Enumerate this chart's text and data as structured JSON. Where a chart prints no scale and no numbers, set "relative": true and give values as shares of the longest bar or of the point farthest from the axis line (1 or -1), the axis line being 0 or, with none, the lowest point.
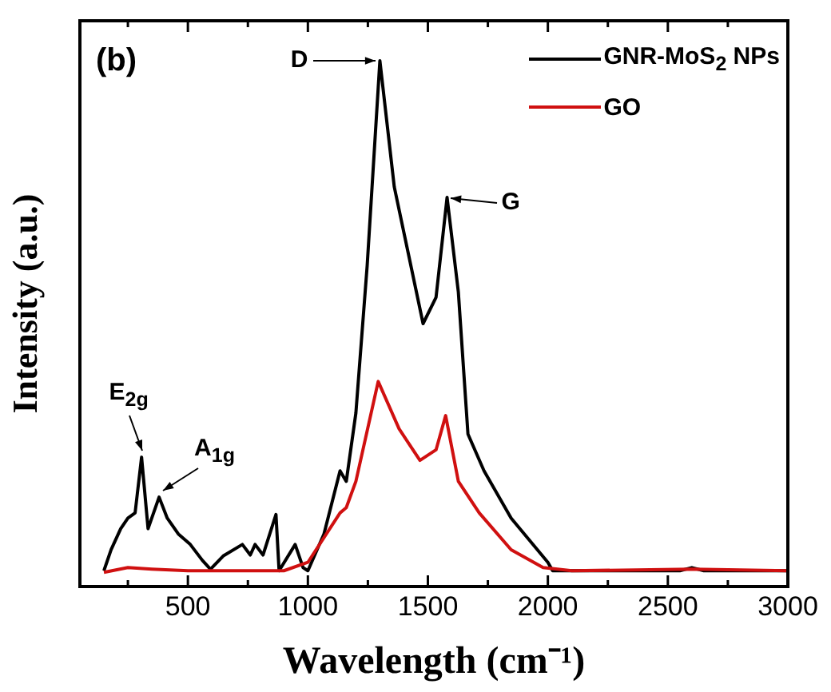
{
  "chart_data": {
    "type": "line",
    "relative": true,
    "xlabel": "Wavelength (cm⁻¹)",
    "ylabel": "Intensity (a.u.)",
    "xlim": [
      50,
      3000
    ],
    "xticks": [
      {
        "value": 250,
        "label": null
      },
      500,
      {
        "value": 750,
        "label": null
      },
      1000,
      {
        "value": 1250,
        "label": null
      },
      1500,
      {
        "value": 1750,
        "label": null
      },
      2000,
      {
        "value": 2250,
        "label": null
      },
      2500,
      {
        "value": 2750,
        "label": null
      },
      3000
    ],
    "legend": "top right",
    "grid": false,
    "marker": "none",
    "line_style": "solid",
    "series": [
      {
        "name": "GNR-MoS$_{2}$ NPs",
        "color": "#000000",
        "x": [
          150,
          180,
          220,
          250,
          280,
          307,
          334,
          380,
          414,
          460,
          510,
          560,
          594,
          647,
          727,
          760,
          780,
          813,
          867,
          880,
          947,
          980,
          1000,
          1067,
          1134,
          1160,
          1200,
          1247,
          1300,
          1360,
          1480,
          1534,
          1580,
          1627,
          1667,
          1734,
          1847,
          2000,
          2020,
          2300,
          2550,
          2600,
          2650,
          3000
        ],
        "values": [
          0.03,
          0.07,
          0.11,
          0.13,
          0.14,
          0.246,
          0.11,
          0.17,
          0.13,
          0.1,
          0.08,
          0.05,
          0.033,
          0.058,
          0.08,
          0.06,
          0.08,
          0.06,
          0.137,
          0.03,
          0.08,
          0.036,
          0.03,
          0.1,
          0.22,
          0.2,
          0.33,
          0.61,
          1.0,
          0.76,
          0.5,
          0.55,
          0.74,
          0.56,
          0.29,
          0.22,
          0.13,
          0.046,
          0.03,
          0.03,
          0.03,
          0.036,
          0.03,
          0.03
        ]
      },
      {
        "name": "GO",
        "color": "#d01010",
        "x": [
          150,
          250,
          350,
          500,
          700,
          900,
          1000,
          1134,
          1160,
          1200,
          1293,
          1380,
          1467,
          1534,
          1574,
          1627,
          1714,
          1847,
          1980,
          2100,
          2600,
          3000
        ],
        "values": [
          0.027,
          0.036,
          0.033,
          0.03,
          0.03,
          0.03,
          0.046,
          0.14,
          0.15,
          0.2,
          0.39,
          0.3,
          0.24,
          0.26,
          0.325,
          0.2,
          0.14,
          0.07,
          0.036,
          0.03,
          0.033,
          0.03
        ]
      }
    ],
    "annotations": [
      "(b)",
      {
        "text": "D",
        "x": 1300,
        "y": 1.0
      },
      {
        "text": "G",
        "x": 1580,
        "y": 0.74
      },
      {
        "text": "E$_{2g}$",
        "x": 307,
        "y": 0.246
      },
      {
        "text": "A$_{1g}$",
        "x": 380,
        "y": 0.17
      }
    ]
  }
}
